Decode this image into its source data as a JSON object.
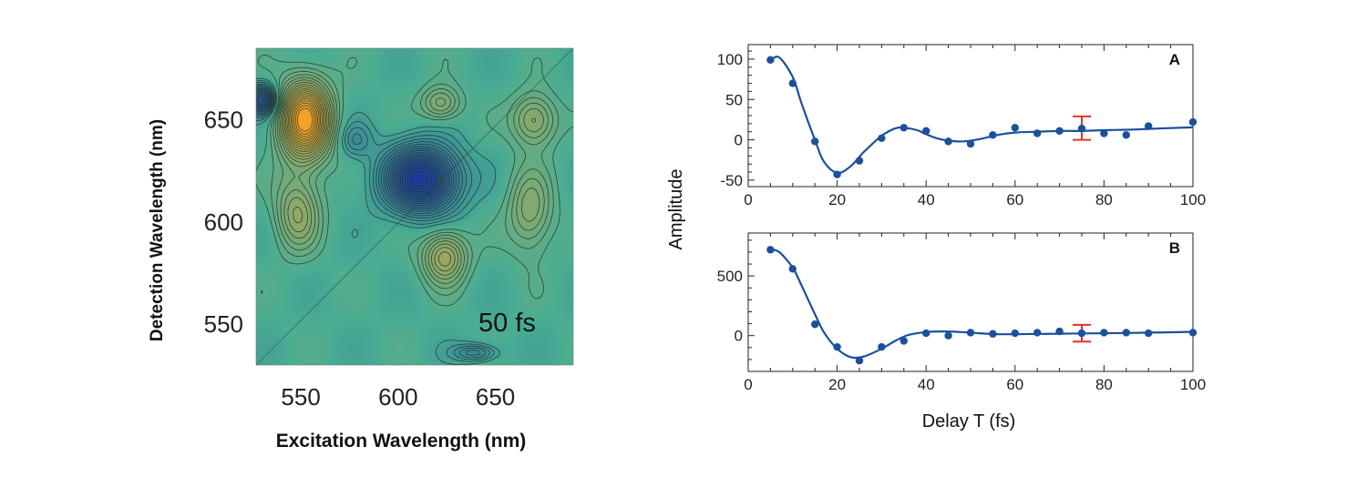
{
  "chart_data": [
    {
      "type": "heatmap",
      "id": "2d-spectrum",
      "xlabel": "Excitation Wavelength (nm)",
      "ylabel": "Detection Wavelength (nm)",
      "xlim": [
        527,
        690
      ],
      "ylim": [
        530,
        685
      ],
      "xticks": [
        550,
        600,
        650
      ],
      "yticks": [
        550,
        600,
        650
      ],
      "annotation": "50 fs",
      "colors": {
        "background": "#49ad94",
        "positive": "#f4a228",
        "negative": "#1c3a99",
        "contour": "#1e2a22"
      },
      "features": [
        {
          "name": "positive-peak",
          "x": 552,
          "y": 650,
          "amplitude": 1.0,
          "sx": 9,
          "sy": 13
        },
        {
          "name": "negative-peak",
          "x": 612,
          "y": 621,
          "amplitude": -1.0,
          "sx": 13,
          "sy": 11
        },
        {
          "name": "edge-negative",
          "x": 530,
          "y": 660,
          "amplitude": -0.75,
          "sx": 5,
          "sy": 5
        },
        {
          "name": "ridge-left-low",
          "x": 548,
          "y": 605,
          "amplitude": 0.35,
          "sx": 8,
          "sy": 13
        },
        {
          "name": "ridge-lower-mid",
          "x": 624,
          "y": 583,
          "amplitude": 0.45,
          "sx": 8,
          "sy": 9
        },
        {
          "name": "ridge-right",
          "x": 670,
          "y": 650,
          "amplitude": 0.35,
          "sx": 8,
          "sy": 9
        },
        {
          "name": "ridge-top-mid",
          "x": 622,
          "y": 658,
          "amplitude": 0.3,
          "sx": 7,
          "sy": 6
        },
        {
          "name": "ridge-right-low",
          "x": 668,
          "y": 605,
          "amplitude": 0.3,
          "sx": 8,
          "sy": 14
        },
        {
          "name": "dip-bottom",
          "x": 640,
          "y": 536,
          "amplitude": -0.3,
          "sx": 8,
          "sy": 3
        },
        {
          "name": "dip-left",
          "x": 578,
          "y": 640,
          "amplitude": -0.2,
          "sx": 6,
          "sy": 6
        }
      ]
    },
    {
      "type": "scatter",
      "id": "panel-A",
      "panel_label": "A",
      "xlim": [
        0,
        100
      ],
      "ylim": [
        -58,
        118
      ],
      "xticks": [
        0,
        20,
        40,
        60,
        80,
        100
      ],
      "yticks": [
        -50,
        0,
        50,
        100
      ],
      "x": [
        5,
        10,
        15,
        20,
        25,
        30,
        35,
        40,
        45,
        50,
        55,
        60,
        65,
        70,
        75,
        80,
        85,
        90,
        100
      ],
      "y": [
        99,
        70,
        -2,
        -43,
        -26,
        2,
        15,
        11,
        -2,
        -5,
        6,
        15,
        8,
        11,
        14,
        8,
        6,
        17,
        22
      ],
      "fit_x": [
        5,
        7,
        10,
        12,
        15,
        17,
        20,
        23,
        26,
        30,
        33,
        35,
        38,
        40,
        43,
        47,
        50,
        53,
        56,
        60,
        65,
        70,
        75,
        80,
        85,
        90,
        95,
        100
      ],
      "fit_y": [
        99,
        102,
        78,
        45,
        0,
        -27,
        -41,
        -33,
        -15,
        5,
        14,
        15,
        12,
        7,
        1,
        -2,
        -1,
        2,
        6,
        9,
        10,
        11,
        11,
        12,
        12.5,
        13.5,
        14.5,
        15.5
      ],
      "error_bar": {
        "x": 75,
        "low": 0,
        "high": 29
      },
      "colors": {
        "marker": "#1c4f9c",
        "fit": "#1c4f9c",
        "error": "#e4302b"
      }
    },
    {
      "type": "scatter",
      "id": "panel-B",
      "panel_label": "B",
      "xlim": [
        0,
        100
      ],
      "ylim": [
        -300,
        860
      ],
      "xticks": [
        0,
        20,
        40,
        60,
        80,
        100
      ],
      "yticks": [
        0,
        500
      ],
      "x": [
        5,
        10,
        15,
        20,
        25,
        30,
        35,
        40,
        45,
        50,
        55,
        60,
        65,
        70,
        75,
        80,
        85,
        90,
        100
      ],
      "y": [
        720,
        560,
        95,
        -95,
        -210,
        -95,
        -45,
        20,
        0,
        25,
        15,
        20,
        25,
        35,
        20,
        25,
        25,
        20,
        25
      ],
      "fit_x": [
        5,
        7,
        10,
        12,
        15,
        17,
        20,
        23,
        26,
        30,
        33,
        36,
        40,
        44,
        48,
        52,
        56,
        60,
        65,
        70,
        75,
        80,
        85,
        90,
        95,
        100
      ],
      "fit_y": [
        722,
        700,
        570,
        420,
        180,
        30,
        -110,
        -180,
        -175,
        -110,
        -45,
        5,
        30,
        35,
        30,
        20,
        12,
        12,
        14,
        16,
        18,
        20,
        22,
        25,
        28,
        32
      ],
      "error_bar": {
        "x": 75,
        "low": -50,
        "high": 90
      },
      "colors": {
        "marker": "#1c4f9c",
        "fit": "#1c4f9c",
        "error": "#e4302b"
      }
    }
  ],
  "shared": {
    "xlabel": "Delay T (fs)",
    "ylabel": "Amplitude"
  }
}
